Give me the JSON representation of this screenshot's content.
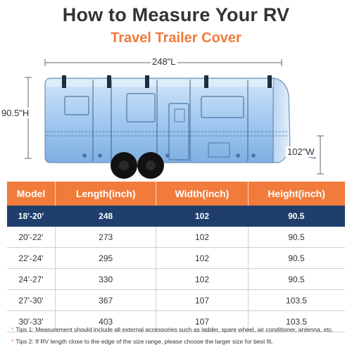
{
  "title": "How to Measure Your RV",
  "subtitle": "Travel Trailer Cover",
  "colors": {
    "accent": "#f07b3b",
    "highlight": "#1f3e6c",
    "cover": "#a8ccee"
  },
  "dimensions": {
    "length": "248\"L",
    "height": "90.5\"H",
    "width": "102\"W"
  },
  "table": {
    "headers": [
      "Model",
      "Length(inch)",
      "Width(inch)",
      "Height(inch)"
    ],
    "highlight_row": 0,
    "rows": [
      [
        "18'-20'",
        "248",
        "102",
        "90.5"
      ],
      [
        "20'-22'",
        "273",
        "102",
        "90.5"
      ],
      [
        "22'-24'",
        "295",
        "102",
        "90.5"
      ],
      [
        "24'-27'",
        "330",
        "102",
        "90.5"
      ],
      [
        "27'-30'",
        "367",
        "107",
        "103.5"
      ],
      [
        "30'-33'",
        "403",
        "107",
        "103.5"
      ]
    ]
  },
  "tips": [
    "Tips 1: Measurement should include all external accessories such as ladder, spare wheel, air conditioner, antenna, etc.",
    "Tips 2: If RV length close to the edge of the size range, please choose the larger size for best fit."
  ],
  "icons": {
    "tip_marker": "asterisk-icon"
  }
}
